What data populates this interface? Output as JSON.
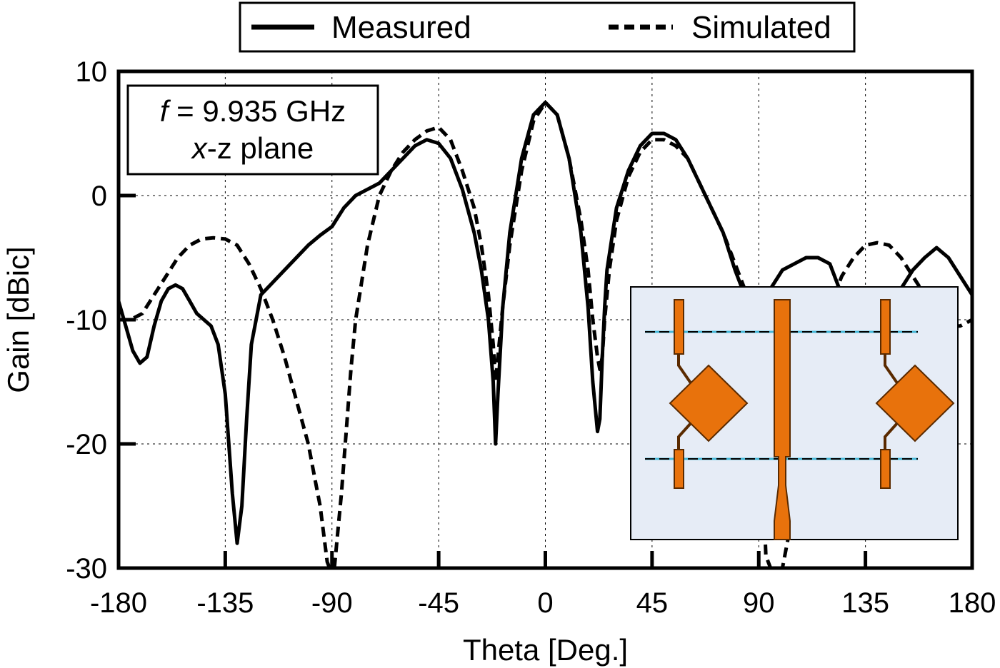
{
  "chart_data": {
    "type": "line",
    "xlabel": "Theta [Deg.]",
    "ylabel": "Gain [dBic]",
    "xlim": [
      -180,
      180
    ],
    "ylim": [
      -30,
      10
    ],
    "xticks": [
      -180,
      -135,
      -90,
      -45,
      0,
      45,
      90,
      135,
      180
    ],
    "yticks": [
      -30,
      -20,
      -10,
      0,
      10
    ],
    "grid": true,
    "legend_position": "top",
    "annotation": {
      "line1_italic": "f",
      "line1_rest": " = 9.935 GHz",
      "line2_italic": "x",
      "line2_rest": "-z plane"
    },
    "inset": "antenna-array-layout",
    "colors": {
      "patch": "#e8720c",
      "inset_bg": "#e6ecf6",
      "line": "#000000",
      "dashed_stripe": "#44b8d8"
    },
    "series": [
      {
        "name": "Measured",
        "style": "solid",
        "x": [
          -180,
          -177,
          -174,
          -171,
          -168,
          -165,
          -162,
          -159,
          -156,
          -153,
          -150,
          -147,
          -144,
          -141,
          -138,
          -135,
          -132,
          -130,
          -128,
          -126,
          -124,
          -120,
          -115,
          -110,
          -105,
          -100,
          -95,
          -90,
          -85,
          -80,
          -75,
          -70,
          -65,
          -60,
          -55,
          -50,
          -45,
          -40,
          -35,
          -30,
          -27,
          -24,
          -22,
          -21,
          -20,
          -18,
          -15,
          -10,
          -5,
          0,
          5,
          10,
          15,
          18,
          20,
          22,
          23,
          24,
          25,
          26,
          28,
          30,
          35,
          40,
          45,
          50,
          55,
          60,
          65,
          70,
          75,
          80,
          85,
          88,
          90,
          95,
          100,
          105,
          110,
          115,
          120,
          125,
          130,
          135,
          140,
          145,
          150,
          155,
          160,
          165,
          170,
          175,
          180
        ],
        "y": [
          -8.5,
          -10.5,
          -12.5,
          -13.5,
          -13,
          -10.5,
          -8.5,
          -7.5,
          -7.2,
          -7.5,
          -8.5,
          -9.5,
          -10,
          -10.5,
          -12,
          -16,
          -24,
          -28,
          -25,
          -18,
          -12,
          -8,
          -7,
          -6,
          -5,
          -4,
          -3.2,
          -2.5,
          -1,
          0,
          0.5,
          1,
          2,
          3,
          4,
          4.5,
          4.2,
          3,
          0.5,
          -3,
          -6,
          -10,
          -15,
          -20,
          -16,
          -9,
          -3,
          3,
          6.5,
          7.5,
          6.5,
          3,
          -3,
          -9,
          -15,
          -19,
          -18,
          -13,
          -9,
          -6,
          -3.5,
          -1,
          2,
          4,
          5,
          5,
          4.5,
          3,
          1,
          -1,
          -3,
          -6,
          -8.5,
          -9,
          -9,
          -7.5,
          -6,
          -5.5,
          -5,
          -5,
          -5.5,
          -8,
          -10,
          -11,
          -10,
          -8.5,
          -7.5,
          -6,
          -5,
          -4.2,
          -5,
          -6.5,
          -8
        ]
      },
      {
        "name": "Simulated",
        "style": "dashed",
        "x": [
          -180,
          -175,
          -170,
          -165,
          -160,
          -155,
          -150,
          -145,
          -140,
          -135,
          -130,
          -125,
          -120,
          -115,
          -110,
          -105,
          -100,
          -97,
          -95,
          -93,
          -92,
          -91,
          -90,
          -89,
          -88,
          -86,
          -84,
          -82,
          -80,
          -75,
          -70,
          -65,
          -60,
          -55,
          -50,
          -45,
          -40,
          -35,
          -30,
          -27,
          -24,
          -22,
          -21,
          -20,
          -18,
          -15,
          -10,
          -5,
          0,
          5,
          10,
          15,
          18,
          20,
          22,
          23,
          24,
          25,
          27,
          30,
          35,
          40,
          45,
          50,
          55,
          60,
          65,
          70,
          75,
          80,
          85,
          88,
          90,
          91,
          92,
          93,
          95,
          100,
          105,
          110,
          115,
          120,
          125,
          130,
          135,
          140,
          145,
          150,
          155,
          160,
          165,
          170,
          175,
          180
        ],
        "y": [
          -10,
          -10,
          -9.5,
          -8,
          -6.5,
          -5,
          -4,
          -3.5,
          -3.4,
          -3.5,
          -4,
          -5.5,
          -7.5,
          -10,
          -13,
          -16.5,
          -20,
          -23,
          -25,
          -28,
          -29.5,
          -30,
          -30,
          -30,
          -28,
          -24,
          -19,
          -14,
          -10,
          -4,
          0,
          2,
          3.5,
          4.5,
          5.2,
          5.5,
          4.5,
          2,
          -1,
          -4,
          -8,
          -12,
          -15,
          -13,
          -9,
          -4,
          2,
          6,
          7.5,
          6.5,
          3,
          -2,
          -6,
          -10,
          -13,
          -14,
          -13,
          -10,
          -6,
          -2,
          1.5,
          3.5,
          4.5,
          4.5,
          4,
          3,
          1,
          -1,
          -3,
          -5.5,
          -8,
          -9.5,
          -13,
          -18,
          -24,
          -29,
          -30,
          -30,
          -25,
          -18,
          -13,
          -9,
          -6.5,
          -5,
          -4,
          -3.8,
          -4,
          -5,
          -6.5,
          -8,
          -9.5,
          -10.5,
          -10.5,
          -10
        ]
      }
    ]
  }
}
